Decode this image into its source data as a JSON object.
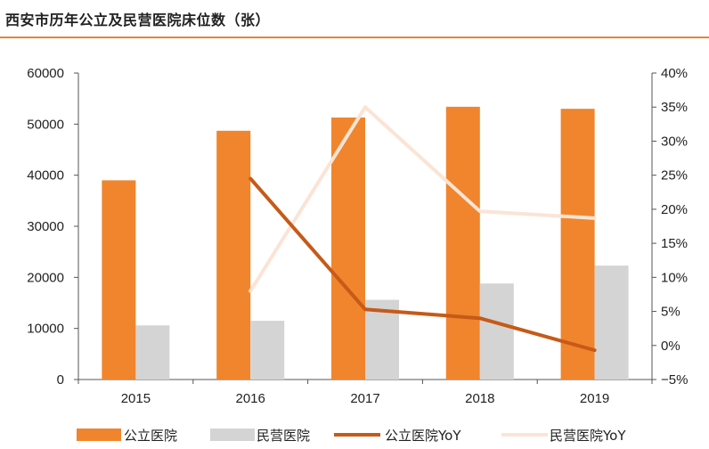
{
  "title": "西安市历年公立及民营医院床位数（张）",
  "colors": {
    "title_rule": "#e0863a",
    "public_bar": "#f0852d",
    "private_bar": "#d4d4d4",
    "public_yoy": "#c65a17",
    "private_yoy": "#fbe4d5"
  },
  "chart_data": {
    "type": "bar",
    "categories": [
      "2015",
      "2016",
      "2017",
      "2018",
      "2019"
    ],
    "series": [
      {
        "name": "公立医院",
        "type": "bar",
        "axis": "left",
        "values": [
          39000,
          48700,
          51300,
          53400,
          53000
        ]
      },
      {
        "name": "民营医院",
        "type": "bar",
        "axis": "left",
        "values": [
          10600,
          11500,
          15600,
          18800,
          22300
        ]
      },
      {
        "name": "公立医院YoY",
        "type": "line",
        "axis": "right",
        "values": [
          null,
          24.5,
          5.3,
          4.0,
          -0.7
        ]
      },
      {
        "name": "民营医院YoY",
        "type": "line",
        "axis": "right",
        "values": [
          null,
          8.0,
          35.0,
          19.7,
          18.7
        ]
      }
    ],
    "y_left": {
      "min": 0,
      "max": 60000,
      "ticks": [
        "0",
        "10000",
        "20000",
        "30000",
        "40000",
        "50000",
        "60000"
      ]
    },
    "y_right": {
      "min": -5,
      "max": 40,
      "ticks": [
        "−5%",
        "0%",
        "5%",
        "10%",
        "15%",
        "20%",
        "25%",
        "30%",
        "35%",
        "40%"
      ]
    },
    "grid": false,
    "legend_position": "bottom"
  }
}
